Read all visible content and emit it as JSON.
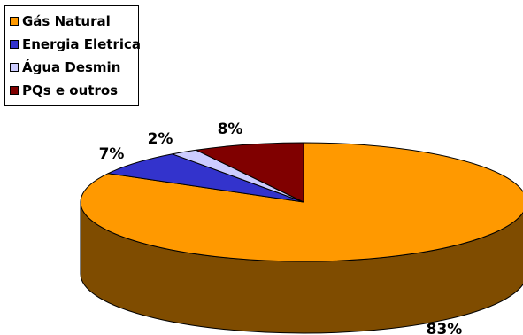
{
  "chart_data": {
    "type": "pie",
    "title": "",
    "legend_position": "top-left",
    "slices": [
      {
        "label": "Gás Natural",
        "value": 83,
        "value_label": "83%",
        "color": "#FF9900",
        "side_color": "#7F4C00"
      },
      {
        "label": "Energia Eletrica",
        "value": 7,
        "value_label": "7%",
        "color": "#3333CC",
        "side_color": "#1A1A66"
      },
      {
        "label": "Água Desmin",
        "value": 2,
        "value_label": "2%",
        "color": "#CCCCFF",
        "side_color": "#66667F"
      },
      {
        "label": "PQs e outros",
        "value": 8,
        "value_label": "8%",
        "color": "#800000",
        "side_color": "#400000"
      }
    ]
  }
}
